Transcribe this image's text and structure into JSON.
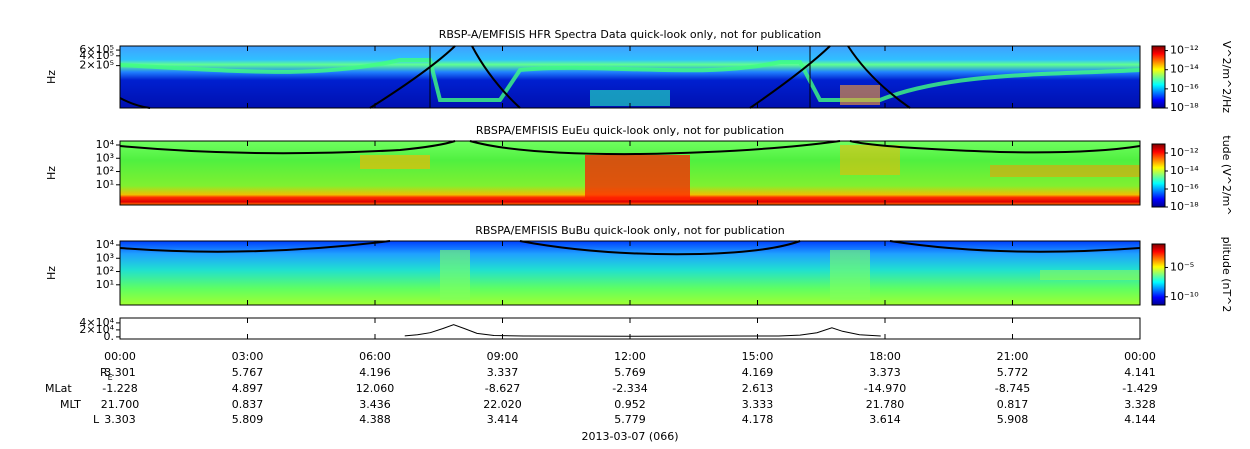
{
  "chart_data": [
    {
      "type": "spectrogram",
      "title": "RBSP-A/EMFISIS  HFR Spectra Data quick-look only, not for publication",
      "ylabel": "Hz",
      "yscale": "log",
      "ylim": [
        10000,
        800000
      ],
      "yticks": [
        {
          "value": 200000,
          "label": "2×10⁵"
        },
        {
          "value": 400000,
          "label": "4×10⁵"
        },
        {
          "value": 600000,
          "label": "6×10⁵"
        }
      ],
      "colorbar": {
        "label": "V^2/m^2/Hz",
        "scale": "log",
        "lim": [
          1e-18,
          3e-12
        ],
        "ticks": [
          {
            "value": 1e-12,
            "label": "10⁻¹²"
          },
          {
            "value": 1e-14,
            "label": "10⁻¹⁴"
          },
          {
            "value": 1e-16,
            "label": "10⁻¹⁶"
          },
          {
            "value": 1e-18,
            "label": "10⁻¹⁸"
          }
        ]
      }
    },
    {
      "type": "spectrogram",
      "title": "RBSPA/EMFISIS  EuEu quick-look only, not for publication",
      "ylabel": "Hz",
      "yscale": "log",
      "ylim": [
        0.3,
        20000
      ],
      "yticks": [
        {
          "value": 10000,
          "label": "10⁴"
        },
        {
          "value": 1000,
          "label": "10³"
        },
        {
          "value": 100,
          "label": "10²"
        },
        {
          "value": 10,
          "label": "10¹"
        }
      ],
      "colorbar": {
        "label": "tude (V^2/m^",
        "scale": "log",
        "lim": [
          1e-18,
          1e-11
        ],
        "ticks": [
          {
            "value": 1e-12,
            "label": "10⁻¹²"
          },
          {
            "value": 1e-14,
            "label": "10⁻¹⁴"
          },
          {
            "value": 1e-16,
            "label": "10⁻¹⁶"
          },
          {
            "value": 1e-18,
            "label": "10⁻¹⁸"
          }
        ]
      }
    },
    {
      "type": "spectrogram",
      "title": "RBSPA/EMFISIS  BuBu quick-look only, not for publication",
      "ylabel": "Hz",
      "yscale": "log",
      "ylim": [
        0.3,
        20000
      ],
      "yticks": [
        {
          "value": 10000,
          "label": "10⁴"
        },
        {
          "value": 1000,
          "label": "10³"
        },
        {
          "value": 100,
          "label": "10²"
        },
        {
          "value": 10,
          "label": "10¹"
        }
      ],
      "colorbar": {
        "label": "plitude (nT^2",
        "scale": "log",
        "lim": [
          4e-12,
          0.1
        ],
        "ticks": [
          {
            "value": 1e-05,
            "label": "10⁻⁵"
          },
          {
            "value": 1e-10,
            "label": "10⁻¹⁰"
          }
        ]
      }
    },
    {
      "type": "line",
      "yscale": "linear",
      "ylim": [
        -6000,
        54000
      ],
      "yticks": [
        {
          "value": 40000,
          "label": "4×10⁴"
        },
        {
          "value": 20000,
          "label": "2×10⁴"
        },
        {
          "value": 0,
          "label": "0."
        }
      ],
      "xlim": [
        0,
        24
      ],
      "xticks": [
        {
          "value": 0,
          "label": "00:00"
        },
        {
          "value": 3,
          "label": "03:00"
        },
        {
          "value": 6,
          "label": "06:00"
        },
        {
          "value": 9,
          "label": "09:00"
        },
        {
          "value": 12,
          "label": "12:00"
        },
        {
          "value": 15,
          "label": "15:00"
        },
        {
          "value": 18,
          "label": "18:00"
        },
        {
          "value": 21,
          "label": "21:00"
        },
        {
          "value": 24,
          "label": "00:00"
        }
      ],
      "x": [
        6.7,
        7.0,
        7.3,
        7.6,
        7.85,
        8.1,
        8.4,
        8.8,
        9.5,
        12,
        15.5,
        16.0,
        16.4,
        16.75,
        17.0,
        17.4,
        17.9
      ],
      "series": [
        {
          "color": "#000000",
          "values": [
            3000,
            6000,
            12000,
            24000,
            35000,
            24000,
            10000,
            4000,
            2500,
            2000,
            2500,
            5000,
            12000,
            26000,
            16000,
            6000,
            2500
          ]
        }
      ]
    }
  ],
  "colormap": [
    "#00008f",
    "#0000ff",
    "#0080ff",
    "#00ffff",
    "#80ff80",
    "#ffff00",
    "#ff8000",
    "#ff0000",
    "#800000"
  ],
  "ephemeris": {
    "rows": [
      {
        "label": "R",
        "sub": "E",
        "values": [
          "3.301",
          "5.767",
          "4.196",
          "3.337",
          "5.769",
          "4.169",
          "3.373",
          "5.772",
          "4.141"
        ]
      },
      {
        "label": "MLat",
        "values": [
          "-1.228",
          "4.897",
          "12.060",
          "-8.627",
          "-2.334",
          "2.613",
          "-14.970",
          "-8.745",
          "-1.429"
        ]
      },
      {
        "label": "MLT",
        "values": [
          "21.700",
          "0.837",
          "3.436",
          "22.020",
          "0.952",
          "3.333",
          "21.780",
          "0.817",
          "3.328"
        ]
      },
      {
        "label": "L",
        "values": [
          "3.303",
          "5.809",
          "4.388",
          "3.414",
          "5.779",
          "4.178",
          "3.614",
          "5.908",
          "4.144"
        ]
      }
    ]
  },
  "date": "2013-03-07 (066)"
}
